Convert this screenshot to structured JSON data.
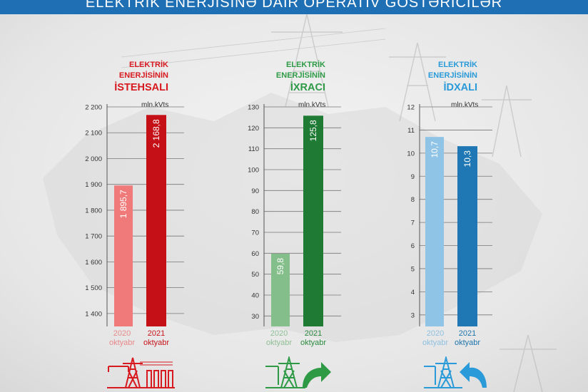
{
  "header": {
    "title": "ELEKTRİK ENERJİSİNƏ DAİR OPERATİV GÖSTƏRİCİLƏR"
  },
  "panels": [
    {
      "title_lines": [
        "ELEKTRİK",
        "ENERJİSİNİN",
        "İSTEHSALI"
      ],
      "unit": "mln.kVts",
      "labels": [
        {
          "year": "2020",
          "month": "oktyabr"
        },
        {
          "year": "2021",
          "month": "oktyabr"
        }
      ],
      "colors": {
        "title": "#d71920",
        "bar_2020": "#f07a7a",
        "bar_2021": "#c41016",
        "label_2020": "#e88888",
        "label_2021": "#c8141a"
      }
    },
    {
      "title_lines": [
        "ELEKTRİK",
        "ENERJİSİNİN",
        "İXRACI"
      ],
      "unit": "mln.kVts",
      "labels": [
        {
          "year": "2020",
          "month": "oktyabr"
        },
        {
          "year": "2021",
          "month": "oktyabr"
        }
      ],
      "colors": {
        "title": "#2e9a46",
        "bar_2020": "#84be8a",
        "bar_2021": "#1f7a34",
        "label_2020": "#8fbf95",
        "label_2021": "#2a8a3e"
      }
    },
    {
      "title_lines": [
        "ELEKTRİK",
        "ENERJİSİNİN",
        "İDXALI"
      ],
      "unit": "mln.kVts",
      "labels": [
        {
          "year": "2020",
          "month": "oktyabr"
        },
        {
          "year": "2021",
          "month": "oktyabr"
        }
      ],
      "colors": {
        "title": "#2a9ad8",
        "bar_2020": "#8fc4e6",
        "bar_2021": "#1f78b4",
        "label_2020": "#8ec0e0",
        "label_2021": "#1f75ad"
      }
    }
  ],
  "chart_data": [
    {
      "type": "bar",
      "title": "ELEKTRİK ENERJİSİNİN İSTEHSALI",
      "ylabel": "mln.kVts",
      "categories": [
        "2020 oktyabr",
        "2021 oktyabr"
      ],
      "values": [
        1895.7,
        2168.8
      ],
      "value_labels": [
        "1 895,7",
        "2 168,8"
      ],
      "yticks": [
        "1 400",
        "1 500",
        "1 600",
        "1 700",
        "1 800",
        "1 900",
        "2 000",
        "2 100",
        "2 200"
      ],
      "ylim": [
        1350,
        2200
      ],
      "grid": true
    },
    {
      "type": "bar",
      "title": "ELEKTRİK ENERJİSİNİN İXRACI",
      "ylabel": "mln.kVts",
      "categories": [
        "2020 oktyabr",
        "2021 oktyabr"
      ],
      "values": [
        59.8,
        125.8
      ],
      "value_labels": [
        "59,8",
        "125,8"
      ],
      "yticks": [
        "30",
        "40",
        "50",
        "60",
        "70",
        "80",
        "90",
        "100",
        "110",
        "120",
        "130"
      ],
      "ylim": [
        25,
        130
      ],
      "grid": true
    },
    {
      "type": "bar",
      "title": "ELEKTRİK ENERJİSİNİN İDXALI",
      "ylabel": "mln.kVts",
      "categories": [
        "2020 oktyabr",
        "2021 oktyabr"
      ],
      "values": [
        10.7,
        10.3
      ],
      "value_labels": [
        "10,7",
        "10,3"
      ],
      "yticks": [
        "3",
        "4",
        "5",
        "6",
        "7",
        "8",
        "9",
        "10",
        "11",
        "12"
      ],
      "ylim": [
        2.5,
        12
      ],
      "grid": true
    }
  ],
  "icons": [
    {
      "name": "power-plant-icon",
      "color": "#d71920"
    },
    {
      "name": "export-tower-icon",
      "color": "#2e9a46"
    },
    {
      "name": "import-tower-icon",
      "color": "#2a9ad8"
    }
  ]
}
